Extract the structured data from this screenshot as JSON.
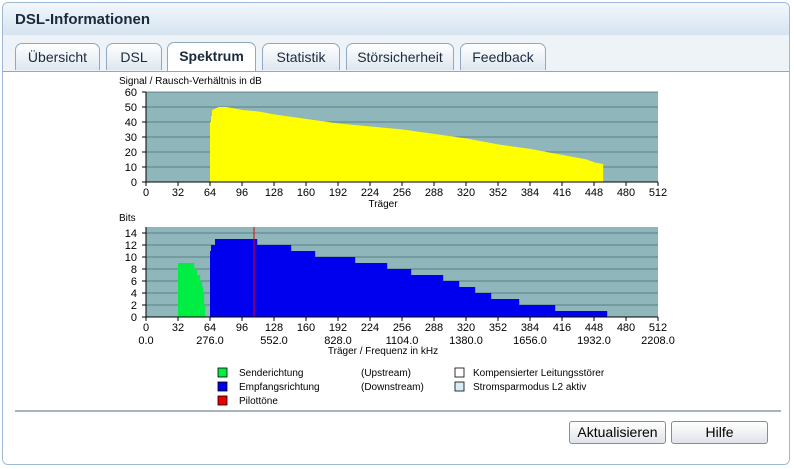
{
  "window": {
    "title": "DSL-Informationen"
  },
  "tabs": [
    {
      "label": "Übersicht",
      "active": false
    },
    {
      "label": "DSL",
      "active": false
    },
    {
      "label": "Spektrum",
      "active": true
    },
    {
      "label": "Statistik",
      "active": false
    },
    {
      "label": "Störsicherheit",
      "active": false
    },
    {
      "label": "Feedback",
      "active": false
    }
  ],
  "colors": {
    "plot_bg": "#8eb6bb",
    "snr": "#ffff00",
    "upstream": "#00ee44",
    "downstream": "#0000ee",
    "pilot": "#ee0000"
  },
  "chart_data": [
    {
      "type": "area",
      "title": "Signal / Rausch-Verhältnis in dB",
      "xlabel": "Träger",
      "x_ticks": [
        "0",
        "32",
        "64",
        "96",
        "128",
        "160",
        "192",
        "224",
        "256",
        "288",
        "320",
        "352",
        "384",
        "416",
        "448",
        "480",
        "512"
      ],
      "y_ticks": [
        "0",
        "10",
        "20",
        "30",
        "40",
        "50",
        "60"
      ],
      "xlim": [
        0,
        512
      ],
      "ylim": [
        0,
        60
      ],
      "series": [
        {
          "name": "",
          "x": [
            64,
            66,
            72,
            80,
            96,
            112,
            128,
            160,
            192,
            224,
            256,
            288,
            320,
            352,
            384,
            416,
            440,
            448,
            456
          ],
          "values": [
            40,
            48,
            50,
            50,
            48,
            47,
            45,
            42,
            39,
            37,
            35,
            32,
            29,
            25,
            22,
            18,
            15,
            13,
            12
          ]
        }
      ]
    },
    {
      "type": "area",
      "title": "Bits",
      "xlabel": "Träger / Frequenz in kHz",
      "x_ticks": [
        "0",
        "32",
        "64",
        "96",
        "128",
        "160",
        "192",
        "224",
        "256",
        "288",
        "320",
        "352",
        "384",
        "416",
        "448",
        "480",
        "512"
      ],
      "x_ticks_khz": [
        "0.0",
        "276.0",
        "552.0",
        "828.0",
        "1104.0",
        "1380.0",
        "1656.0",
        "1932.0",
        "2208.0"
      ],
      "y_ticks": [
        "0",
        "2",
        "4",
        "6",
        "8",
        "10",
        "12",
        "14"
      ],
      "xlim": [
        0,
        512
      ],
      "ylim": [
        0,
        15
      ],
      "series": [
        {
          "name": "Senderichtung",
          "x": [
            32,
            33,
            37,
            45,
            49,
            52,
            56,
            58
          ],
          "values": [
            9,
            9,
            9,
            9,
            8,
            7,
            5,
            2
          ]
        },
        {
          "name": "Empfangsrichtung",
          "x": [
            64,
            66,
            72,
            80,
            96,
            108,
            112,
            128,
            160,
            176,
            192,
            224,
            256,
            272,
            288,
            304,
            320,
            336,
            352,
            360,
            384,
            400,
            416,
            432,
            440,
            448,
            456,
            460
          ],
          "values": [
            11,
            12,
            13,
            13,
            13,
            13,
            12,
            12,
            11,
            10,
            10,
            9,
            8,
            7,
            7,
            6,
            5,
            4,
            3,
            3,
            2,
            2,
            1,
            1,
            1,
            1,
            1,
            1
          ]
        }
      ],
      "pilot_tone_x": 108
    }
  ],
  "legend": [
    {
      "label": "Senderichtung",
      "direction": "(Upstream)",
      "color": "#00ee44"
    },
    {
      "label": "Empfangsrichtung",
      "direction": "(Downstream)",
      "color": "#0000ee"
    },
    {
      "label": "Pilottöne",
      "direction": "",
      "color": "#ee0000"
    }
  ],
  "legend_right": [
    {
      "label": "Kompensierter Leitungsstörer"
    },
    {
      "label": "Stromsparmodus L2 aktiv"
    }
  ],
  "buttons": {
    "refresh": "Aktualisieren",
    "help": "Hilfe"
  }
}
